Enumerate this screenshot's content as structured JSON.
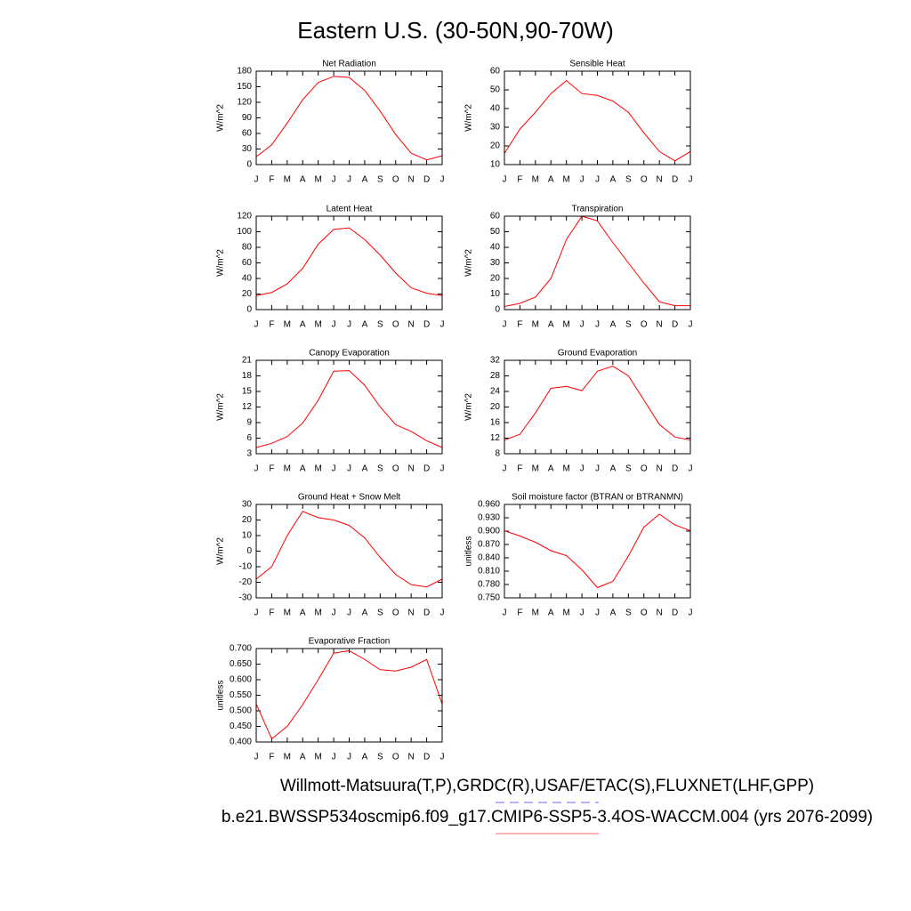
{
  "title": "Eastern U.S. (30-50N,90-70W)",
  "chart_data": [
    {
      "type": "line",
      "title": "Net Radiation",
      "y_label": "W/m^2",
      "categories": [
        "J",
        "F",
        "M",
        "A",
        "M",
        "J",
        "J",
        "A",
        "S",
        "O",
        "N",
        "D",
        "J"
      ],
      "values": [
        15,
        38,
        80,
        125,
        158,
        170,
        168,
        143,
        103,
        58,
        22,
        9,
        17
      ],
      "color": "#ff0000",
      "ylim": [
        0,
        180
      ],
      "yticks": [
        0,
        30,
        60,
        90,
        120,
        150,
        180
      ]
    },
    {
      "type": "line",
      "title": "Sensible Heat",
      "y_label": "W/m^2",
      "categories": [
        "J",
        "F",
        "M",
        "A",
        "M",
        "J",
        "J",
        "A",
        "S",
        "O",
        "N",
        "D",
        "J"
      ],
      "values": [
        16,
        29,
        38,
        48,
        55,
        48,
        47,
        44,
        38,
        27,
        17,
        12,
        17
      ],
      "color": "#ff0000",
      "ylim": [
        10,
        60
      ],
      "yticks": [
        10,
        20,
        30,
        40,
        50,
        60
      ]
    },
    {
      "type": "line",
      "title": "Latent Heat",
      "y_label": "W/m^2",
      "categories": [
        "J",
        "F",
        "M",
        "A",
        "M",
        "J",
        "J",
        "A",
        "S",
        "O",
        "N",
        "D",
        "J"
      ],
      "values": [
        18,
        22,
        33,
        53,
        84,
        103,
        105,
        90,
        70,
        47,
        28,
        21,
        18
      ],
      "color": "#ff0000",
      "ylim": [
        0,
        120
      ],
      "yticks": [
        0,
        20,
        40,
        60,
        80,
        100,
        120
      ]
    },
    {
      "type": "line",
      "title": "Transpiration",
      "y_label": "W/m^2",
      "categories": [
        "J",
        "F",
        "M",
        "A",
        "M",
        "J",
        "J",
        "A",
        "S",
        "O",
        "N",
        "D",
        "J"
      ],
      "values": [
        2,
        4,
        8,
        20,
        45,
        60,
        57,
        43,
        30,
        17,
        5,
        2.5,
        2.5
      ],
      "color": "#ff0000",
      "ylim": [
        0,
        60
      ],
      "yticks": [
        0,
        10,
        20,
        30,
        40,
        50,
        60
      ]
    },
    {
      "type": "line",
      "title": "Canopy Evaporation",
      "y_label": "W/m^2",
      "categories": [
        "J",
        "F",
        "M",
        "A",
        "M",
        "J",
        "J",
        "A",
        "S",
        "O",
        "N",
        "D",
        "J"
      ],
      "values": [
        4.2,
        5,
        6.3,
        8.9,
        13.3,
        18.9,
        19,
        16.2,
        12,
        8.6,
        7.3,
        5.5,
        4.2
      ],
      "color": "#ff0000",
      "ylim": [
        3,
        21
      ],
      "yticks": [
        3,
        6,
        9,
        12,
        15,
        18,
        21
      ]
    },
    {
      "type": "line",
      "title": "Ground Evaporation",
      "y_label": "W/m^2",
      "categories": [
        "J",
        "F",
        "M",
        "A",
        "M",
        "J",
        "J",
        "A",
        "S",
        "O",
        "N",
        "D",
        "J"
      ],
      "values": [
        11.5,
        13,
        18.5,
        24.8,
        25.3,
        24.2,
        29.2,
        30.5,
        28,
        21.8,
        15.5,
        12.3,
        11.5
      ],
      "color": "#ff0000",
      "ylim": [
        8,
        32
      ],
      "yticks": [
        8,
        12,
        16,
        20,
        24,
        28,
        32
      ]
    },
    {
      "type": "line",
      "title": "Ground Heat + Snow Melt",
      "y_label": "W/m^2",
      "categories": [
        "J",
        "F",
        "M",
        "A",
        "M",
        "J",
        "J",
        "A",
        "S",
        "O",
        "N",
        "D",
        "J"
      ],
      "values": [
        -18,
        -10,
        10,
        25.5,
        21.5,
        20,
        16.5,
        8.5,
        -4,
        -15,
        -21.5,
        -23,
        -18
      ],
      "color": "#ff0000",
      "ylim": [
        -30,
        30
      ],
      "yticks": [
        -30,
        -20,
        -10,
        0,
        10,
        20,
        30
      ]
    },
    {
      "type": "line",
      "title": "Soil moisture factor (BTRAN or BTRANMN)",
      "y_label": "unitless",
      "categories": [
        "J",
        "F",
        "M",
        "A",
        "M",
        "J",
        "J",
        "A",
        "S",
        "O",
        "N",
        "D",
        "J"
      ],
      "values": [
        0.901,
        0.889,
        0.875,
        0.856,
        0.845,
        0.813,
        0.773,
        0.787,
        0.844,
        0.909,
        0.938,
        0.914,
        0.901
      ],
      "color": "#ff0000",
      "ylim": [
        0.75,
        0.96
      ],
      "yticks": [
        {
          "value": 0.75,
          "label": "0.750"
        },
        {
          "value": 0.78,
          "label": "0.780"
        },
        {
          "value": 0.81,
          "label": "0.810"
        },
        {
          "value": 0.84,
          "label": "0.840"
        },
        {
          "value": 0.87,
          "label": "0.870"
        },
        {
          "value": 0.9,
          "label": "0.900"
        },
        {
          "value": 0.93,
          "label": "0.930"
        },
        {
          "value": 0.96,
          "label": "0.960"
        }
      ]
    },
    {
      "type": "line",
      "title": "Evaporative Fraction",
      "y_label": "unitless",
      "categories": [
        "J",
        "F",
        "M",
        "A",
        "M",
        "J",
        "J",
        "A",
        "S",
        "O",
        "N",
        "D",
        "J"
      ],
      "values": [
        0.522,
        0.41,
        0.45,
        0.52,
        0.6,
        0.685,
        0.693,
        0.665,
        0.632,
        0.628,
        0.64,
        0.665,
        0.522
      ],
      "color": "#ff0000",
      "ylim": [
        0.4,
        0.7
      ],
      "yticks": [
        {
          "value": 0.4,
          "label": "0.400"
        },
        {
          "value": 0.45,
          "label": "0.450"
        },
        {
          "value": 0.5,
          "label": "0.500"
        },
        {
          "value": 0.55,
          "label": "0.550"
        },
        {
          "value": 0.6,
          "label": "0.600"
        },
        {
          "value": 0.65,
          "label": "0.650"
        },
        {
          "value": 0.7,
          "label": "0.700"
        }
      ]
    }
  ],
  "footer": [
    {
      "text": "Willmott-Matsuura(T,P),GRDC(R),USAF/ETAC(S),FLUXNET(LHF,GPP)",
      "color": "#8888ff",
      "dashed": true
    },
    {
      "text": "b.e21.BWSSP534oscmip6.f09_g17.CMIP6-SSP5-3.4OS-WACCM.004 (yrs 2076-2099)",
      "color": "#ff8888",
      "dashed": false
    }
  ]
}
